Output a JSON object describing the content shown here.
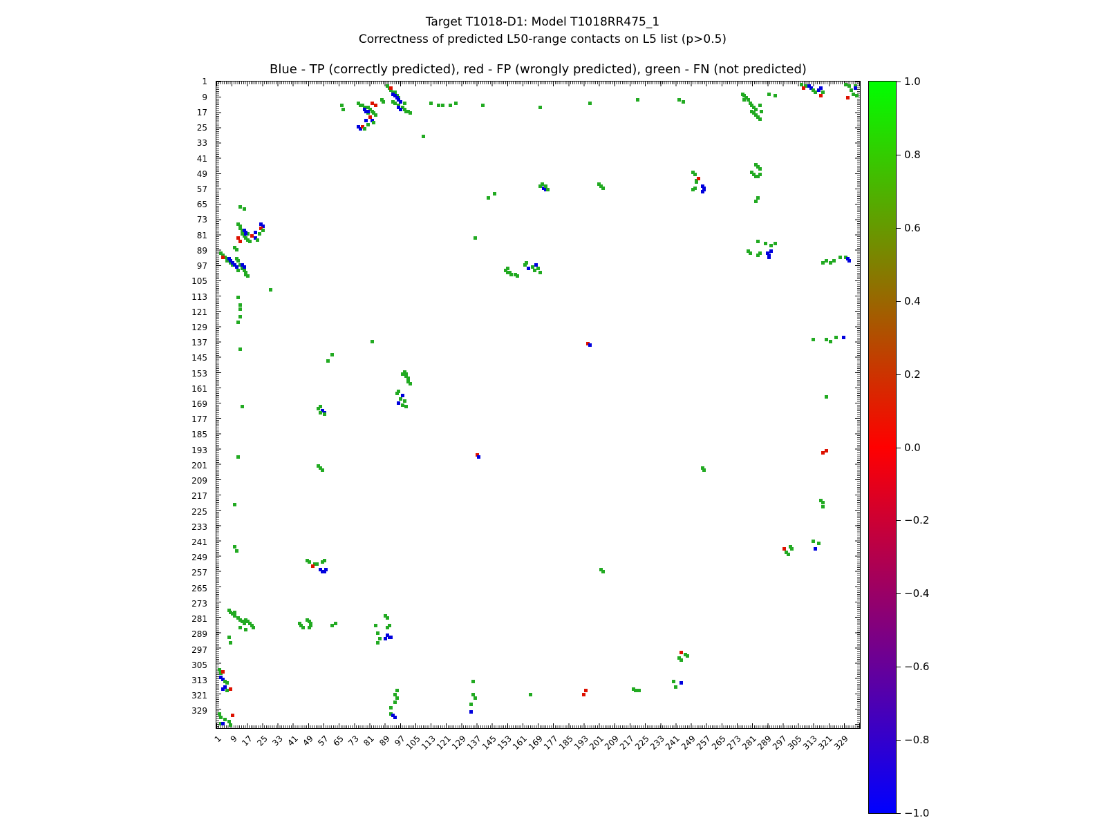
{
  "figure": {
    "suptitle_line1": "Target T1018-D1: Model T1018RR475_1",
    "suptitle_line2": "Correctness of predicted L50-range contacts on L5 list (p>0.5)"
  },
  "chart_data": {
    "type": "scatter",
    "title": "Blue - TP (correctly predicted), red - FP (wrongly predicted), green - FN (not predicted)",
    "xlabel": "",
    "ylabel": "",
    "axis_range": [
      0.5,
      337.5
    ],
    "x_ticks": [
      1,
      9,
      17,
      25,
      33,
      41,
      49,
      57,
      65,
      73,
      81,
      89,
      97,
      105,
      113,
      121,
      129,
      137,
      145,
      153,
      161,
      169,
      177,
      185,
      193,
      201,
      209,
      217,
      225,
      233,
      241,
      249,
      257,
      265,
      273,
      281,
      289,
      297,
      305,
      313,
      321,
      329
    ],
    "y_ticks": [
      1,
      9,
      17,
      25,
      33,
      41,
      49,
      57,
      65,
      73,
      81,
      89,
      97,
      105,
      113,
      121,
      129,
      137,
      145,
      153,
      161,
      169,
      177,
      185,
      193,
      201,
      209,
      217,
      225,
      233,
      241,
      249,
      257,
      265,
      273,
      281,
      289,
      297,
      305,
      313,
      321,
      329
    ],
    "grid": false,
    "symmetric": true,
    "classes": [
      "TP",
      "FP",
      "FN"
    ],
    "class_colors": {
      "TP": "#0000dd",
      "FP": "#dd1100",
      "FN": "#22aa22"
    },
    "legend": [
      {
        "name": "TP",
        "meaning": "correctly predicted",
        "color": "#0000dd"
      },
      {
        "name": "FP",
        "meaning": "wrongly predicted",
        "color": "#dd1100"
      },
      {
        "name": "FN",
        "meaning": "not predicted",
        "color": "#22aa22"
      }
    ],
    "points": [
      [
        90,
        3,
        2
      ],
      [
        91,
        4,
        2
      ],
      [
        92,
        5,
        2
      ],
      [
        93,
        6,
        2
      ],
      [
        94,
        6,
        2
      ],
      [
        95,
        8,
        2
      ],
      [
        96,
        9,
        2
      ],
      [
        92,
        4,
        1
      ],
      [
        93,
        7,
        0
      ],
      [
        94,
        8,
        0
      ],
      [
        95,
        9,
        0
      ],
      [
        96,
        10,
        0
      ],
      [
        97,
        11,
        0
      ],
      [
        93,
        11,
        2
      ],
      [
        94,
        12,
        2
      ],
      [
        96,
        13,
        2
      ],
      [
        98,
        14,
        2
      ],
      [
        99,
        15,
        2
      ],
      [
        100,
        16,
        2
      ],
      [
        101,
        16,
        2
      ],
      [
        102,
        17,
        2
      ],
      [
        96,
        14,
        0
      ],
      [
        97,
        15,
        0
      ],
      [
        99,
        12,
        2
      ],
      [
        87,
        10,
        2
      ],
      [
        88,
        11,
        2
      ],
      [
        75,
        12,
        2
      ],
      [
        76,
        13,
        2
      ],
      [
        77,
        13,
        2
      ],
      [
        78,
        14,
        2
      ],
      [
        80,
        14,
        2
      ],
      [
        81,
        15,
        2
      ],
      [
        82,
        16,
        2
      ],
      [
        83,
        17,
        2
      ],
      [
        84,
        18,
        2
      ],
      [
        80,
        17,
        2
      ],
      [
        78,
        15,
        0
      ],
      [
        79,
        16,
        0
      ],
      [
        80,
        16,
        0
      ],
      [
        82,
        12,
        1
      ],
      [
        84,
        13,
        1
      ],
      [
        75,
        24,
        0
      ],
      [
        76,
        25,
        0
      ],
      [
        79,
        21,
        0
      ],
      [
        82,
        21,
        0
      ],
      [
        77,
        24,
        1
      ],
      [
        81,
        19,
        1
      ],
      [
        78,
        25,
        2
      ],
      [
        83,
        22,
        2
      ],
      [
        80,
        23,
        2
      ],
      [
        276,
        7,
        2
      ],
      [
        277,
        8,
        2
      ],
      [
        278,
        9,
        2
      ],
      [
        279,
        10,
        2
      ],
      [
        277,
        10,
        2
      ],
      [
        280,
        12,
        2
      ],
      [
        281,
        13,
        2
      ],
      [
        282,
        14,
        2
      ],
      [
        283,
        15,
        2
      ],
      [
        281,
        16,
        2
      ],
      [
        282,
        17,
        2
      ],
      [
        283,
        18,
        2
      ],
      [
        284,
        19,
        2
      ],
      [
        285,
        20,
        2
      ],
      [
        285,
        13,
        2
      ],
      [
        286,
        16,
        2
      ],
      [
        290,
        7,
        2
      ],
      [
        293,
        8,
        2
      ],
      [
        311,
        3,
        0
      ],
      [
        312,
        4,
        0
      ],
      [
        316,
        5,
        0
      ],
      [
        317,
        4,
        0
      ],
      [
        309,
        3,
        2
      ],
      [
        313,
        5,
        2
      ],
      [
        314,
        6,
        2
      ],
      [
        318,
        6,
        2
      ],
      [
        307,
        2,
        2
      ],
      [
        308,
        4,
        1
      ],
      [
        317,
        8,
        1
      ],
      [
        330,
        2,
        2
      ],
      [
        332,
        3,
        2
      ],
      [
        333,
        5,
        2
      ],
      [
        334,
        7,
        2
      ],
      [
        335,
        3,
        2
      ],
      [
        336,
        8,
        2
      ],
      [
        335,
        4,
        0
      ],
      [
        331,
        9,
        1
      ],
      [
        66,
        13,
        2
      ],
      [
        67,
        15,
        2
      ],
      [
        109,
        29,
        2
      ],
      [
        119,
        13,
        2
      ],
      [
        140,
        13,
        2
      ],
      [
        170,
        14,
        2
      ],
      [
        196,
        12,
        2
      ],
      [
        221,
        10,
        2
      ],
      [
        243,
        10,
        2
      ],
      [
        245,
        11,
        2
      ],
      [
        281,
        48,
        2
      ],
      [
        282,
        49,
        2
      ],
      [
        283,
        50,
        2
      ],
      [
        284,
        50,
        2
      ],
      [
        285,
        49,
        2
      ],
      [
        250,
        48,
        2
      ],
      [
        251,
        49,
        2
      ],
      [
        252,
        52,
        2
      ],
      [
        252,
        53,
        2
      ],
      [
        251,
        56,
        2
      ],
      [
        250,
        57,
        2
      ],
      [
        255,
        55,
        0
      ],
      [
        256,
        56,
        0
      ],
      [
        256,
        57,
        0
      ],
      [
        255,
        58,
        0
      ],
      [
        253,
        51,
        1
      ],
      [
        172,
        56,
        0
      ],
      [
        173,
        57,
        0
      ],
      [
        170,
        55,
        2
      ],
      [
        171,
        54,
        2
      ],
      [
        174,
        57,
        2
      ],
      [
        173,
        55,
        2
      ],
      [
        203,
        56,
        2
      ],
      [
        283,
        63,
        2
      ],
      [
        284,
        61,
        2
      ],
      [
        143,
        61,
        2
      ],
      [
        146,
        59,
        2
      ],
      [
        136,
        82,
        2
      ],
      [
        279,
        89,
        2
      ],
      [
        280,
        90,
        2
      ],
      [
        284,
        91,
        2
      ],
      [
        285,
        90,
        2
      ],
      [
        284,
        84,
        2
      ],
      [
        288,
        85,
        2
      ],
      [
        291,
        86,
        2
      ],
      [
        293,
        85,
        2
      ],
      [
        289,
        90,
        0
      ],
      [
        290,
        91,
        0
      ],
      [
        290,
        92,
        0
      ],
      [
        291,
        89,
        0
      ],
      [
        318,
        95,
        2
      ],
      [
        320,
        94,
        2
      ],
      [
        322,
        95,
        2
      ],
      [
        324,
        94,
        2
      ],
      [
        327,
        92,
        2
      ],
      [
        330,
        92,
        2
      ],
      [
        331,
        93,
        0
      ],
      [
        332,
        94,
        0
      ],
      [
        152,
        99,
        2
      ],
      [
        153,
        100,
        2
      ],
      [
        154,
        100,
        2
      ],
      [
        155,
        101,
        2
      ],
      [
        153,
        98,
        2
      ],
      [
        157,
        101,
        2
      ],
      [
        158,
        102,
        2
      ],
      [
        162,
        96,
        2
      ],
      [
        166,
        97,
        2
      ],
      [
        167,
        99,
        2
      ],
      [
        169,
        98,
        2
      ],
      [
        170,
        100,
        2
      ],
      [
        163,
        95,
        2
      ],
      [
        164,
        98,
        0
      ],
      [
        168,
        96,
        0
      ],
      [
        113,
        12,
        2
      ],
      [
        117,
        13,
        2
      ],
      [
        123,
        13,
        2
      ],
      [
        126,
        12,
        2
      ],
      [
        320,
        135,
        2
      ],
      [
        322,
        136,
        2
      ],
      [
        325,
        134,
        2
      ],
      [
        313,
        135,
        2
      ],
      [
        329,
        134,
        0
      ],
      [
        195,
        137,
        1
      ],
      [
        196,
        138,
        0
      ],
      [
        318,
        194,
        1
      ],
      [
        320,
        193,
        1
      ],
      [
        201,
        54,
        2
      ],
      [
        202,
        55,
        2
      ],
      [
        255,
        202,
        2
      ],
      [
        256,
        203,
        2
      ],
      [
        318,
        220,
        2
      ],
      [
        318,
        222,
        2
      ],
      [
        317,
        219,
        2
      ],
      [
        313,
        240,
        2
      ],
      [
        316,
        241,
        2
      ],
      [
        301,
        243,
        2
      ],
      [
        302,
        244,
        2
      ],
      [
        298,
        244,
        1
      ],
      [
        314,
        244,
        0
      ],
      [
        299,
        246,
        2
      ],
      [
        300,
        247,
        2
      ],
      [
        283,
        44,
        2
      ],
      [
        284,
        45,
        2
      ],
      [
        285,
        46,
        2
      ],
      [
        320,
        165,
        2
      ]
    ]
  },
  "colorbar": {
    "tick_labels": [
      "1.0",
      "0.8",
      "0.6",
      "0.4",
      "0.2",
      "0.0",
      "−0.2",
      "−0.4",
      "−0.6",
      "−0.8",
      "−1.0"
    ],
    "max_label": "1.0",
    "min_label": "−1.0",
    "gradient_top_to_bottom": [
      "#00ff00",
      "#808000",
      "#ff0000",
      "#800080",
      "#0000ff"
    ]
  }
}
